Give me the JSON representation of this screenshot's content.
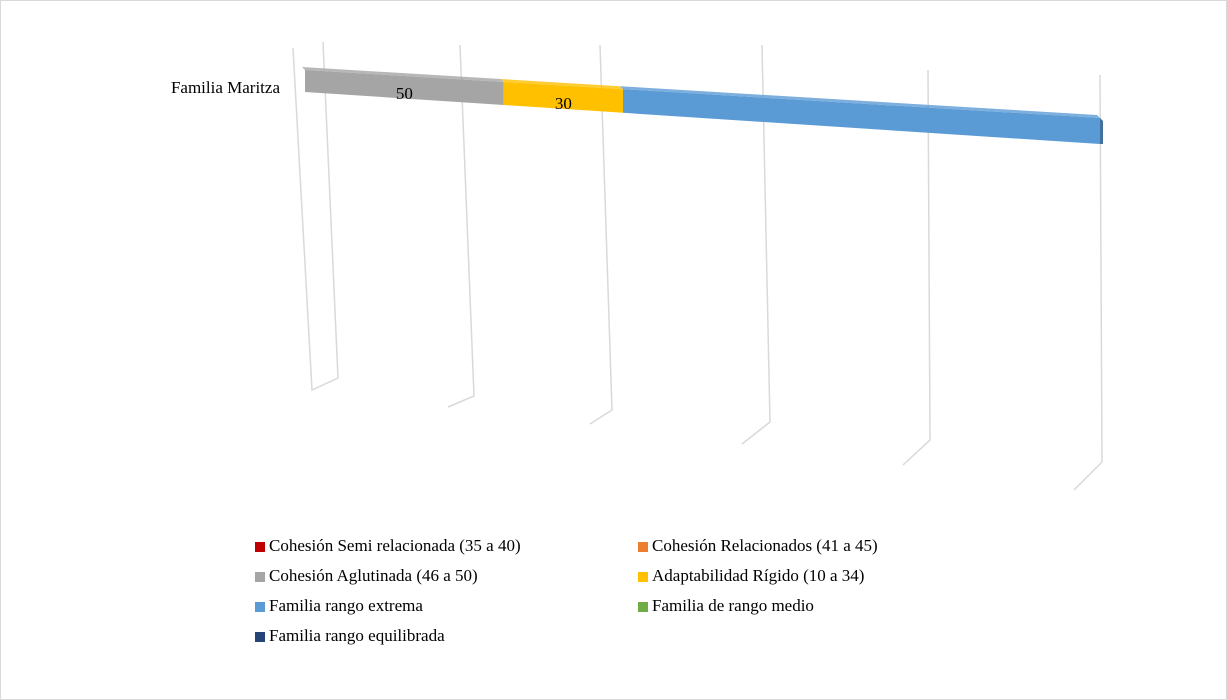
{
  "chart_data": {
    "type": "bar",
    "orientation": "horizontal",
    "stacked": true,
    "categories": [
      "Familia Maritza"
    ],
    "xlim": [
      0,
      200
    ],
    "series": [
      {
        "name": "Cohesión Semi relacionada (35 a 40)",
        "color": "#c00000",
        "values": [
          0
        ],
        "data_labels": false
      },
      {
        "name": "Cohesión Relacionados (41 a 45)",
        "color": "#ed7d31",
        "values": [
          0
        ],
        "data_labels": false
      },
      {
        "name": "Cohesión Aglutinada (46 a 50)",
        "color": "#a5a5a5",
        "values": [
          50
        ],
        "data_labels": true
      },
      {
        "name": "Adaptabilidad Rígido (10 a 34)",
        "color": "#ffc000",
        "values": [
          30
        ],
        "data_labels": true
      },
      {
        "name": "Familia rango extrema",
        "color": "#5b9bd5",
        "values": [
          120
        ],
        "data_labels": false
      },
      {
        "name": "Familia de rango medio",
        "color": "#70ad47",
        "values": [
          0
        ],
        "data_labels": false
      },
      {
        "name": "Familia rango equilibrada",
        "color": "#264478",
        "values": [
          0
        ],
        "data_labels": false
      }
    ]
  }
}
